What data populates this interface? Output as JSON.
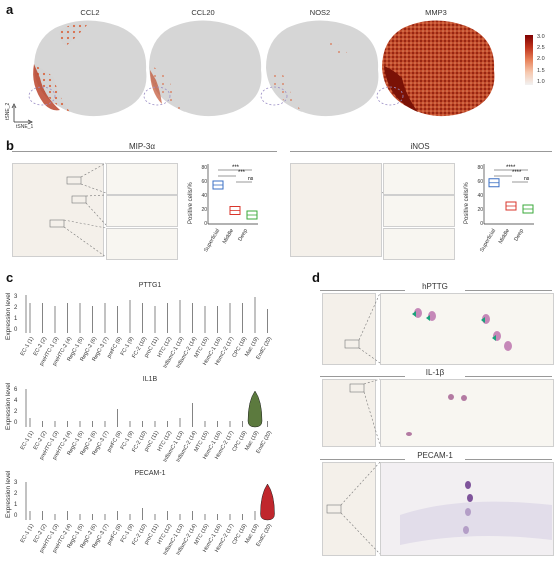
{
  "panel_a": {
    "label": "a",
    "genes": [
      "CCL2",
      "CCL20",
      "NOS2",
      "MMP3"
    ],
    "colorbar_ticks": [
      "3.0",
      "2.5",
      "2.0",
      "1.5",
      "1.0"
    ],
    "axis_x": "tSNE_1",
    "axis_y": "tSNE_2",
    "colors": {
      "low": "#d6d6d6",
      "high": "#b52a14"
    }
  },
  "panel_b": {
    "label": "b",
    "left": {
      "title": "MIP-3α",
      "ylabel": "Positive cells/%",
      "xlabels": [
        "Superficial",
        "Middle",
        "Deep"
      ],
      "yticks": [
        "80",
        "60",
        "40",
        "20",
        "0"
      ],
      "sig": [
        "***",
        "***",
        "ns"
      ]
    },
    "right": {
      "title": "iNOS",
      "ylabel": "Positive cells/%",
      "xlabels": [
        "Superficial",
        "Middle",
        "Deep"
      ],
      "yticks": [
        "80",
        "60",
        "40",
        "20",
        "0"
      ],
      "sig": [
        "****",
        "****",
        "ns"
      ]
    }
  },
  "panel_c": {
    "label": "c",
    "ylabel": "Expression level",
    "clusters": [
      "EC-1 (1)",
      "EC-2 (2)",
      "preHTC-1 (3)",
      "preHTC-2 (4)",
      "RegC-1 (5)",
      "RegC-2 (6)",
      "RegC-3 (7)",
      "preFC (8)",
      "FC-1 (9)",
      "FC-2 (10)",
      "proC (11)",
      "HTC (12)",
      "InflamC-1 (13)",
      "InflamC-2 (14)",
      "MTC (15)",
      "HomC-1 (16)",
      "HomC-2 (17)",
      "CPC (18)",
      "Mac (19)",
      "EndC (20)"
    ],
    "violins": [
      {
        "title": "PTTG1",
        "yticks": [
          "3",
          "2",
          "1",
          "0"
        ],
        "color": "#1f5f8b"
      },
      {
        "title": "IL1B",
        "yticks": [
          "6",
          "4",
          "2",
          "0"
        ],
        "color": "#5c7a3e"
      },
      {
        "title": "PECAM-1",
        "yticks": [
          "3",
          "2",
          "1",
          "0"
        ],
        "color": "#c0272d"
      }
    ]
  },
  "panel_d": {
    "label": "d",
    "stains": [
      "hPTTG",
      "IL-1β",
      "PECAM-1"
    ]
  },
  "chart_data": [
    {
      "type": "bar",
      "title": "MIP-3α",
      "categories": [
        "Superficial",
        "Middle",
        "Deep"
      ],
      "values": [
        52,
        18,
        12
      ],
      "ylabel": "Positive cells/%",
      "ylim": [
        0,
        80
      ],
      "colors": [
        "#3a6fc4",
        "#d9352b",
        "#3aa93a"
      ]
    },
    {
      "type": "bar",
      "title": "iNOS",
      "categories": [
        "Superficial",
        "Middle",
        "Deep"
      ],
      "values": [
        55,
        24,
        20
      ],
      "ylabel": "Positive cells/%",
      "ylim": [
        0,
        80
      ],
      "colors": [
        "#3a6fc4",
        "#d9352b",
        "#3aa93a"
      ]
    }
  ]
}
